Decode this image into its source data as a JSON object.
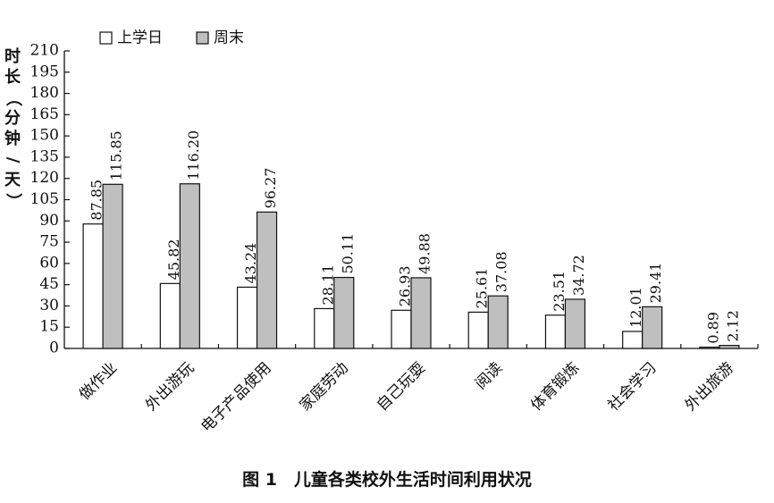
{
  "caption": "图 1　儿童各类校外生活时间利用状况",
  "chart_data": {
    "type": "bar",
    "ylabel": "时长（分钟/天）",
    "ylim": [
      0,
      210
    ],
    "yticks": [
      0,
      15,
      30,
      45,
      60,
      75,
      90,
      105,
      120,
      135,
      150,
      165,
      180,
      195,
      210
    ],
    "categories": [
      "做作业",
      "外出游玩",
      "电子产品使用",
      "家庭劳动",
      "自己玩耍",
      "阅读",
      "体育锻炼",
      "社会学习",
      "外出旅游"
    ],
    "series": [
      {
        "name": "上学日",
        "color": "#ffffff",
        "values": [
          87.85,
          45.82,
          43.24,
          28.11,
          26.93,
          25.61,
          23.51,
          12.01,
          0.89
        ],
        "labels": [
          "87.85",
          "45.82",
          "43.24",
          "28.11",
          "26.93",
          "25.61",
          "23.51",
          "12.01",
          "0.89"
        ]
      },
      {
        "name": "周末",
        "color": "#bfbfbf",
        "values": [
          115.85,
          116.2,
          96.27,
          50.11,
          49.88,
          37.08,
          34.72,
          29.41,
          2.12
        ],
        "labels": [
          "115.85",
          "116.20",
          "96.27",
          "50.11",
          "49.88",
          "37.08",
          "34.72",
          "29.41",
          "2.12"
        ]
      }
    ],
    "legend": "top-left",
    "grid": false
  }
}
